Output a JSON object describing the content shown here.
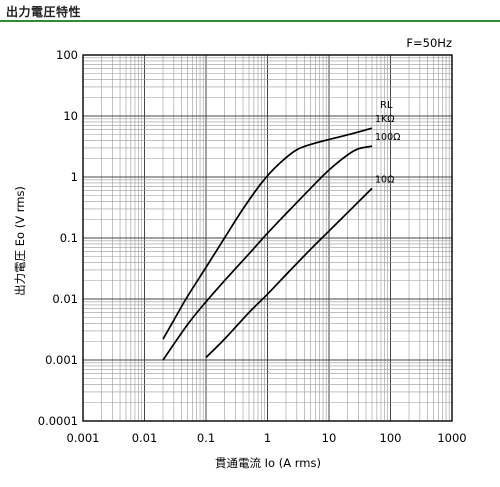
{
  "page": {
    "heading": "出力電圧特性"
  },
  "chart_data": {
    "type": "line",
    "frequency_note": "F=50Hz",
    "xlabel": "貫通電流 Io (A rms)",
    "ylabel": "出力電圧 Eo (V rms)",
    "xscale": "log",
    "yscale": "log",
    "xlim": [
      0.001,
      1000
    ],
    "ylim": [
      0.0001,
      100
    ],
    "x_tick_labels": [
      "0.001",
      "0.01",
      "0.1",
      "1",
      "10",
      "100",
      "1000"
    ],
    "y_tick_labels": [
      "0.0001",
      "0.001",
      "0.01",
      "0.1",
      "1",
      "10",
      "100"
    ],
    "grid": true,
    "legend_title": "RL",
    "series": [
      {
        "name": "1KΩ",
        "x": [
          0.02,
          0.03,
          0.05,
          0.1,
          0.2,
          0.4,
          0.8,
          1.5,
          3,
          6,
          12,
          25,
          50
        ],
        "y": [
          0.0022,
          0.0045,
          0.011,
          0.033,
          0.1,
          0.3,
          0.8,
          1.6,
          2.8,
          3.6,
          4.3,
          5.2,
          6.3
        ]
      },
      {
        "name": "100Ω",
        "x": [
          0.02,
          0.05,
          0.1,
          0.2,
          0.5,
          1,
          2,
          5,
          10,
          20,
          30,
          50
        ],
        "y": [
          0.001,
          0.0038,
          0.009,
          0.02,
          0.055,
          0.12,
          0.25,
          0.65,
          1.3,
          2.3,
          2.9,
          3.2
        ]
      },
      {
        "name": "10Ω",
        "x": [
          0.1,
          0.2,
          0.5,
          1,
          2,
          5,
          10,
          20,
          50
        ],
        "y": [
          0.0011,
          0.0022,
          0.006,
          0.012,
          0.025,
          0.065,
          0.13,
          0.26,
          0.65
        ]
      }
    ]
  }
}
